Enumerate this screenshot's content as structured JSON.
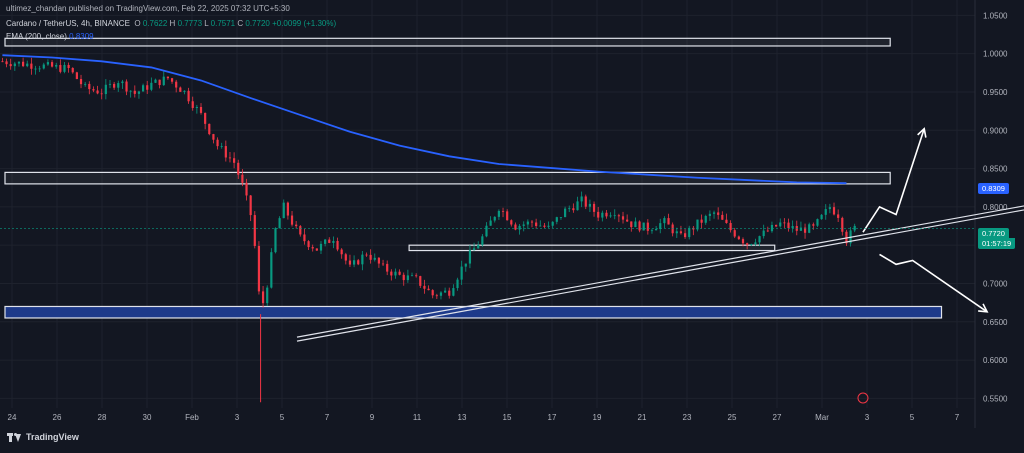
{
  "header": {
    "publisher_line": "ultimez_chandan published on TradingView.com, Feb 22, 2025 07:32 UTC+5:30",
    "symbol_line": "Cardano / TetherUS, 4h, BINANCE",
    "ohlc": {
      "o_label": "O",
      "o": "0.7622",
      "h_label": "H",
      "h": "0.7773",
      "l_label": "L",
      "l": "0.7571",
      "c_label": "C",
      "c": "0.7720",
      "change": "+0.0099 (+1.30%)"
    },
    "ema_label": "EMA (200, close)",
    "ema_value": "0.8309"
  },
  "price_tags": {
    "ema": "0.8309",
    "last": "0.7720",
    "countdown": "01:57:19"
  },
  "footer": {
    "brand": "TradingView"
  },
  "colors": {
    "background": "#131722",
    "grid": "#1e222d",
    "up": "#089981",
    "down": "#f23645",
    "ema": "#2962ff",
    "zone": "#1e3a8a",
    "text": "#b2b5be"
  },
  "chart_data": {
    "type": "candlestick",
    "symbol": "Cardano / TetherUS",
    "timeframe": "4h",
    "y_ticks": [
      "1.0500",
      "1.0000",
      "0.9500",
      "0.9000",
      "0.8500",
      "0.8000",
      "0.7500",
      "0.7000",
      "0.6500",
      "0.6000",
      "0.5500"
    ],
    "y_range": [
      0.5375,
      1.07
    ],
    "x_ticks": [
      "24",
      "26",
      "28",
      "30",
      "Feb",
      "3",
      "5",
      "7",
      "9",
      "11",
      "13",
      "15",
      "17",
      "19",
      "21",
      "23",
      "25",
      "27",
      "Mar",
      "3",
      "5",
      "7"
    ],
    "series_close_path": [
      [
        0,
        0.99
      ],
      [
        2,
        0.985
      ],
      [
        4,
        0.98
      ],
      [
        5,
        0.955
      ],
      [
        6,
        0.95
      ],
      [
        7,
        0.965
      ],
      [
        8,
        0.948
      ],
      [
        9,
        0.96
      ],
      [
        10,
        0.968
      ],
      [
        11,
        0.95
      ],
      [
        12,
        0.92
      ],
      [
        13,
        0.88
      ],
      [
        14,
        0.858
      ],
      [
        14.5,
        0.828
      ],
      [
        15,
        0.79
      ],
      [
        15.3,
        0.74
      ],
      [
        15.6,
        0.66
      ],
      [
        16,
        0.7
      ],
      [
        16.5,
        0.77
      ],
      [
        17,
        0.8
      ],
      [
        18,
        0.76
      ],
      [
        19,
        0.745
      ],
      [
        20,
        0.76
      ],
      [
        21,
        0.72
      ],
      [
        22,
        0.74
      ],
      [
        23,
        0.72
      ],
      [
        24,
        0.71
      ],
      [
        25,
        0.705
      ],
      [
        26,
        0.685
      ],
      [
        27,
        0.69
      ],
      [
        28,
        0.73
      ],
      [
        29,
        0.76
      ],
      [
        30,
        0.8
      ],
      [
        31,
        0.775
      ],
      [
        32,
        0.78
      ],
      [
        33,
        0.772
      ],
      [
        34,
        0.795
      ],
      [
        35,
        0.808
      ],
      [
        36,
        0.79
      ],
      [
        37,
        0.795
      ],
      [
        38,
        0.778
      ],
      [
        39,
        0.772
      ],
      [
        40,
        0.78
      ],
      [
        41,
        0.76
      ],
      [
        42,
        0.778
      ],
      [
        43,
        0.792
      ],
      [
        44,
        0.77
      ],
      [
        45,
        0.752
      ],
      [
        46,
        0.765
      ],
      [
        47,
        0.778
      ],
      [
        48,
        0.77
      ],
      [
        49,
        0.772
      ],
      [
        50,
        0.8
      ],
      [
        50.5,
        0.79
      ],
      [
        51,
        0.757
      ],
      [
        51.5,
        0.772
      ]
    ],
    "ema200": [
      [
        0,
        0.998
      ],
      [
        3,
        0.995
      ],
      [
        6,
        0.99
      ],
      [
        9,
        0.982
      ],
      [
        12,
        0.965
      ],
      [
        15,
        0.942
      ],
      [
        18,
        0.92
      ],
      [
        21,
        0.898
      ],
      [
        24,
        0.88
      ],
      [
        27,
        0.866
      ],
      [
        30,
        0.856
      ],
      [
        33,
        0.851
      ],
      [
        36,
        0.846
      ],
      [
        39,
        0.842
      ],
      [
        42,
        0.838
      ],
      [
        45,
        0.835
      ],
      [
        48,
        0.832
      ],
      [
        51,
        0.8309
      ]
    ],
    "zones": [
      {
        "name": "upper-resistance",
        "low": 1.01,
        "high": 1.02,
        "from": 0,
        "to": 69
      },
      {
        "name": "mid-resistance",
        "low": 0.83,
        "high": 0.845,
        "from": 0,
        "to": 69
      },
      {
        "name": "range-support",
        "low": 0.743,
        "high": 0.75,
        "from": 31.5,
        "to": 60
      },
      {
        "name": "demand-zone",
        "low": 0.655,
        "high": 0.67,
        "from": 0,
        "to": 73
      }
    ],
    "trendline": {
      "start": [
        17.8,
        0.63
      ],
      "end": [
        68.6,
        0.828
      ]
    },
    "scenarios": [
      {
        "name": "bullish",
        "points": [
          [
            52,
            0.767
          ],
          [
            53,
            0.8
          ],
          [
            54,
            0.79
          ],
          [
            55.7,
            0.902
          ]
        ]
      },
      {
        "name": "bearish",
        "points": [
          [
            53,
            0.738
          ],
          [
            54,
            0.725
          ],
          [
            55,
            0.73
          ],
          [
            59.5,
            0.663
          ]
        ]
      }
    ],
    "grid": true
  }
}
